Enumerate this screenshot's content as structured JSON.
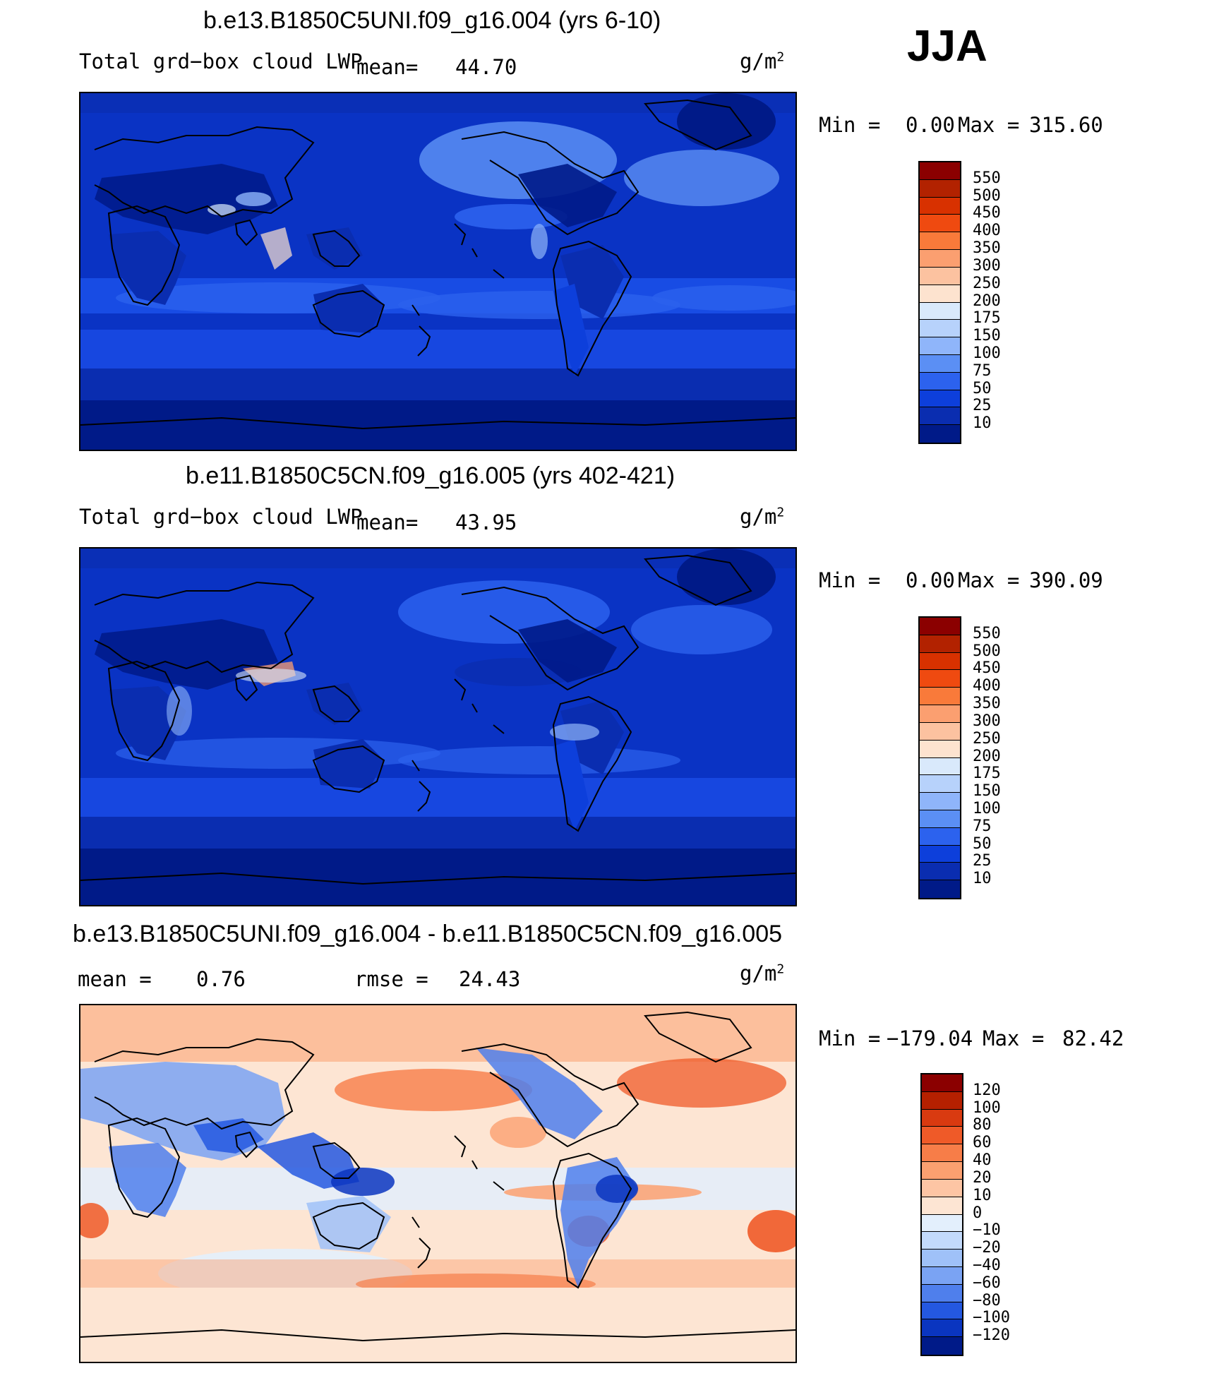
{
  "season": "JJA",
  "panels": [
    {
      "title": "b.e13.B1850C5UNI.f09_g16.004 (yrs 6-10)",
      "variable": "Total grd−box cloud LWP",
      "stat_label": "mean=",
      "stat_value": "44.70",
      "units_base": "g/m",
      "units_exp": "2",
      "min_label": "Min =",
      "min_value": "0.00",
      "max_label": "Max =",
      "max_value": "315.60",
      "colorbar": {
        "labels": [
          "550",
          "500",
          "450",
          "400",
          "350",
          "300",
          "250",
          "200",
          "175",
          "150",
          "100",
          "75",
          "50",
          "25",
          "10"
        ],
        "colors": [
          "#8b0000",
          "#b22200",
          "#d83100",
          "#ef4a10",
          "#f97a3a",
          "#fb9f70",
          "#fcc2a0",
          "#fde3cf",
          "#d9e9fb",
          "#b7d2fb",
          "#8fb5fa",
          "#5b8ff4",
          "#2c62ee",
          "#0d3fdb",
          "#0a2db0",
          "#001a88"
        ]
      }
    },
    {
      "title": "b.e11.B1850C5CN.f09_g16.005 (yrs 402-421)",
      "variable": "Total grd−box cloud LWP",
      "stat_label": "mean=",
      "stat_value": "43.95",
      "units_base": "g/m",
      "units_exp": "2",
      "min_label": "Min =",
      "min_value": "0.00",
      "max_label": "Max =",
      "max_value": "390.09",
      "colorbar": {
        "labels": [
          "550",
          "500",
          "450",
          "400",
          "350",
          "300",
          "250",
          "200",
          "175",
          "150",
          "100",
          "75",
          "50",
          "25",
          "10"
        ],
        "colors": [
          "#8b0000",
          "#b22200",
          "#d83100",
          "#ef4a10",
          "#f97a3a",
          "#fb9f70",
          "#fcc2a0",
          "#fde3cf",
          "#d9e9fb",
          "#b7d2fb",
          "#8fb5fa",
          "#5b8ff4",
          "#2c62ee",
          "#0d3fdb",
          "#0a2db0",
          "#001a88"
        ]
      }
    },
    {
      "title": "b.e13.B1850C5UNI.f09_g16.004 - b.e11.B1850C5CN.f09_g16.005",
      "mean_label": "mean =",
      "mean_value": "0.76",
      "rmse_label": "rmse =",
      "rmse_value": "24.43",
      "units_base": "g/m",
      "units_exp": "2",
      "min_label": "Min =",
      "min_value": "−179.04",
      "max_label": "Max =",
      "max_value": "82.42",
      "colorbar": {
        "labels": [
          "120",
          "100",
          "80",
          "60",
          "40",
          "20",
          "10",
          "0",
          "−10",
          "−20",
          "−40",
          "−60",
          "−80",
          "−100",
          "−120"
        ],
        "colors": [
          "#8b0000",
          "#b52000",
          "#d93a10",
          "#ef5a28",
          "#f77d48",
          "#fba070",
          "#fdc5a4",
          "#fde5d3",
          "#e3effc",
          "#c3dafb",
          "#9fc1f8",
          "#7aa3f3",
          "#4f7fec",
          "#2458e0",
          "#0a35c0",
          "#001a88"
        ]
      }
    }
  ]
}
